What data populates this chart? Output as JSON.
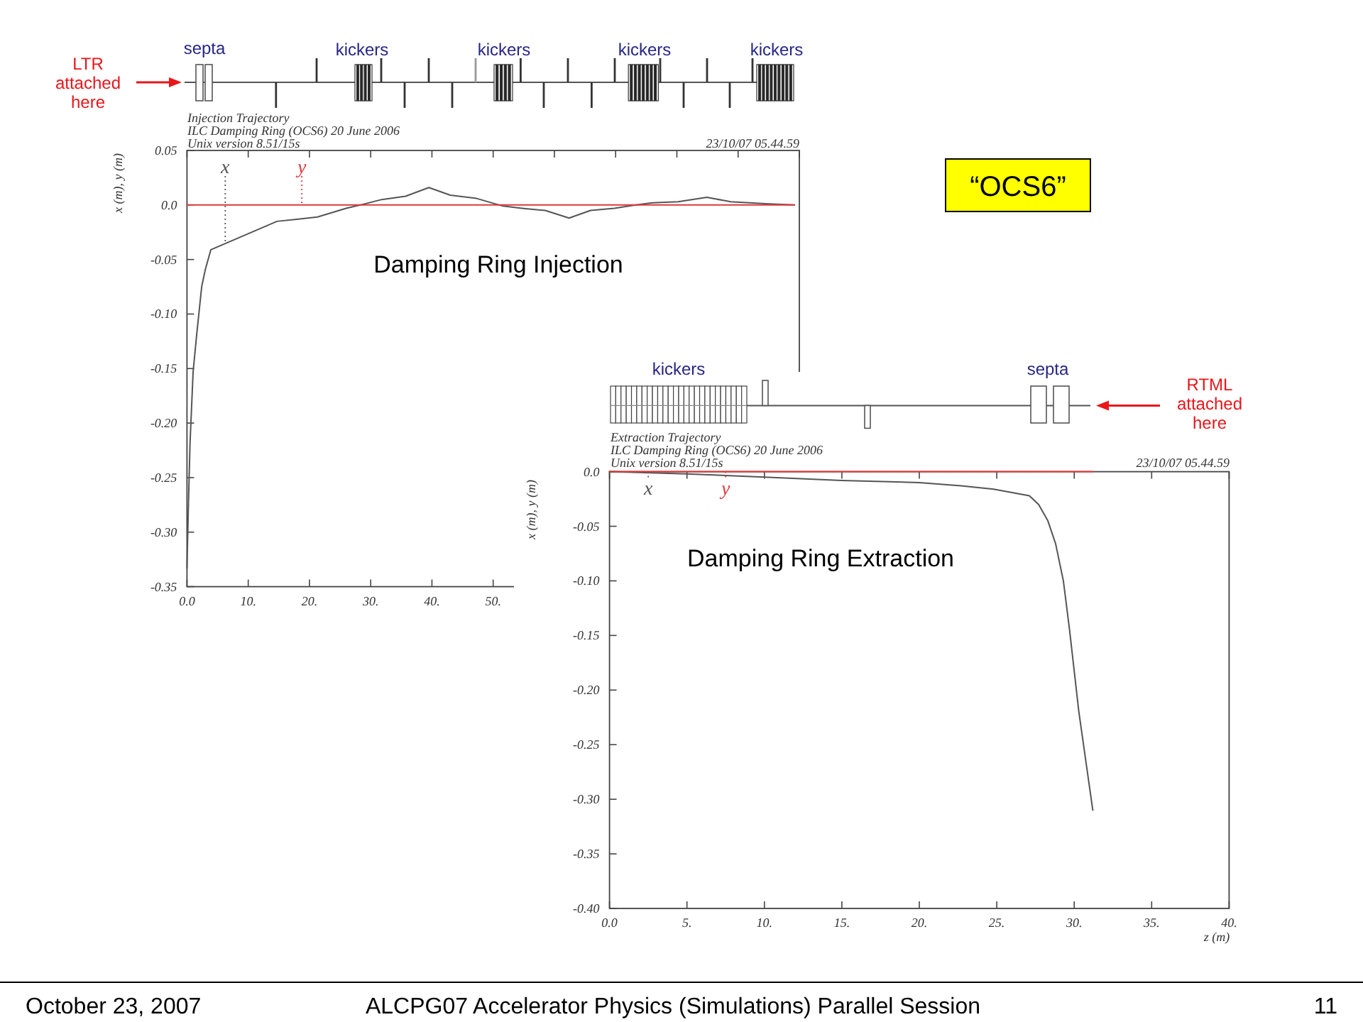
{
  "chart_data": [
    {
      "type": "line",
      "title": "Injection Trajectory",
      "subtitle": "ILC Damping Ring (OCS6) 20 June 2006",
      "ylabel": "x (m), y (m)",
      "xlim": [
        0,
        100
      ],
      "ylim": [
        -0.35,
        0.05
      ],
      "xticks": [
        {
          "value": 0,
          "label": "0.0"
        },
        {
          "value": 10,
          "label": "10."
        },
        {
          "value": 20,
          "label": "20."
        },
        {
          "value": 30,
          "label": "30."
        },
        {
          "value": 40,
          "label": "40."
        },
        {
          "value": 50,
          "label": "50."
        },
        {
          "value": 60,
          "label": null
        },
        {
          "value": 70,
          "label": null
        },
        {
          "value": 80,
          "label": null
        },
        {
          "value": 90,
          "label": null
        },
        {
          "value": 100,
          "label": null
        }
      ],
      "yticks": [
        0.05,
        {
          "value": 0,
          "label": "0.0"
        },
        -0.05,
        {
          "value": -0.1,
          "label": "-0.10"
        },
        -0.15,
        {
          "value": -0.2,
          "label": "-0.20"
        },
        -0.25,
        {
          "value": -0.3,
          "label": "-0.30"
        },
        -0.35
      ],
      "legend": "top left",
      "series": [
        {
          "name": "x",
          "color": "#555555",
          "x": [
            0,
            0.2,
            0.5,
            1.0,
            1.6,
            2.4,
            3.0,
            3.9,
            9.3,
            14.7,
            18.2,
            21.3,
            26.0,
            28.3,
            31.8,
            35.7,
            39.5,
            43.0,
            47.3,
            51.6,
            54.7,
            58.5,
            62.4,
            65.9,
            69.8,
            73.3,
            76.0,
            80.2,
            84.9,
            88.8,
            95.0,
            99.2
          ],
          "values": [
            -0.333,
            -0.283,
            -0.218,
            -0.153,
            -0.118,
            -0.075,
            -0.059,
            -0.041,
            -0.028,
            -0.015,
            -0.013,
            -0.011,
            -0.003,
            0.0,
            0.005,
            0.008,
            0.016,
            0.009,
            0.006,
            -0.001,
            -0.003,
            -0.005,
            -0.012,
            -0.005,
            -0.003,
            0.0,
            0.002,
            0.003,
            0.007,
            0.003,
            0.001,
            0.0
          ]
        },
        {
          "name": "y",
          "color": "#e0393e",
          "x": [
            0,
            99.2
          ],
          "values": [
            0,
            0
          ]
        }
      ],
      "annotations": [
        "Unix version 8.51/15s",
        "23/10/07 05.44.59",
        "Damping Ring Injection",
        "LTR attached here",
        "septa",
        "kickers",
        "kickers",
        "kickers",
        "kickers"
      ]
    },
    {
      "type": "line",
      "title": "Extraction Trajectory",
      "subtitle": "ILC Damping Ring (OCS6) 20 June 2006",
      "xlabel": "z (m)",
      "ylabel": "x (m), y (m)",
      "xlim": [
        0,
        40
      ],
      "ylim": [
        -0.4,
        0
      ],
      "xticks": [
        {
          "value": 0,
          "label": "0.0"
        },
        {
          "value": 5,
          "label": "5."
        },
        {
          "value": 10,
          "label": "10."
        },
        {
          "value": 15,
          "label": "15."
        },
        {
          "value": 20,
          "label": "20."
        },
        {
          "value": 25,
          "label": "25."
        },
        {
          "value": 30,
          "label": "30."
        },
        {
          "value": 35,
          "label": "35."
        },
        {
          "value": 40,
          "label": "40."
        }
      ],
      "yticks": [
        {
          "value": 0,
          "label": "0.0"
        },
        -0.05,
        {
          "value": -0.1,
          "label": "-0.10"
        },
        -0.15,
        {
          "value": -0.2,
          "label": "-0.20"
        },
        -0.25,
        {
          "value": -0.3,
          "label": "-0.30"
        },
        -0.35,
        {
          "value": -0.4,
          "label": "-0.40"
        }
      ],
      "legend": "top left",
      "series": [
        {
          "name": "x",
          "color": "#555555",
          "x": [
            0,
            5,
            10,
            15,
            20,
            22.7,
            24.8,
            27.1,
            27.7,
            28.3,
            28.8,
            29.3,
            29.7,
            30.3,
            31.2
          ],
          "values": [
            0.0,
            -0.002,
            -0.005,
            -0.008,
            -0.01,
            -0.013,
            -0.016,
            -0.022,
            -0.03,
            -0.045,
            -0.066,
            -0.1,
            -0.145,
            -0.22,
            -0.31
          ]
        },
        {
          "name": "y",
          "color": "#e0393e",
          "x": [
            0,
            31.2
          ],
          "values": [
            0,
            0
          ]
        }
      ],
      "annotations": [
        "Unix version 8.51/15s",
        "23/10/07 05.44.59",
        "Damping Ring Extraction",
        "RTML attached here",
        "kickers",
        "septa"
      ]
    },
    {
      "type": "other",
      "annotations": [
        "“OCS6”",
        "October 23, 2007",
        "ALCPG07 Accelerator Physics (Simulations) Parallel Session",
        "11"
      ]
    }
  ]
}
